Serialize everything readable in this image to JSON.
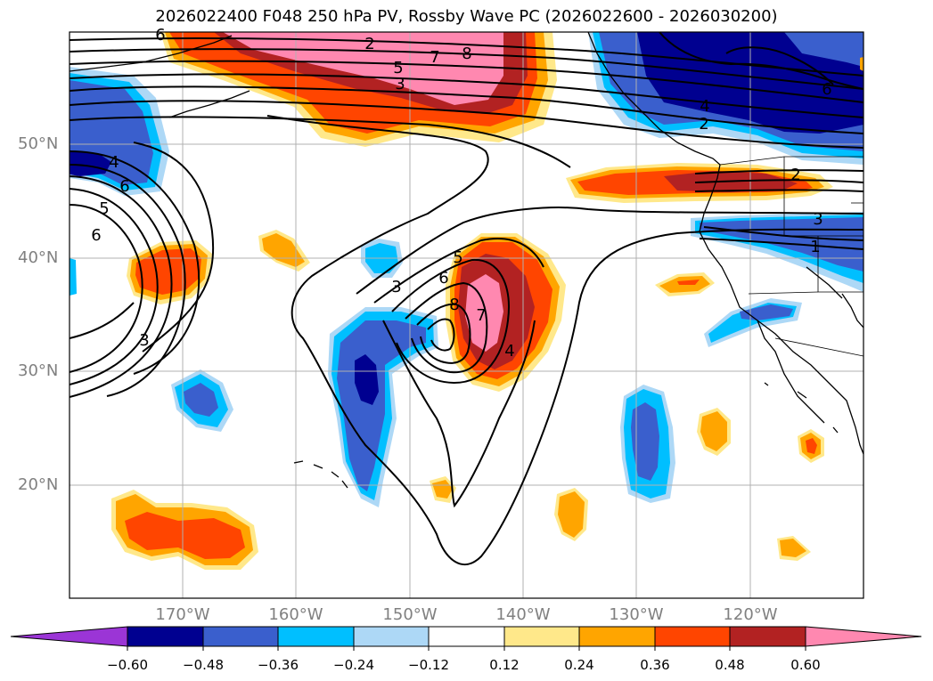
{
  "title": "2026022400 F048 250 hPa PV, Rossby Wave PC (2026022600 - 2026030200)",
  "axes": {
    "lat_labels": [
      "50°N",
      "40°N",
      "30°N",
      "20°N"
    ],
    "lon_labels": [
      "170°W",
      "160°W",
      "150°W",
      "140°W",
      "130°W",
      "120°W"
    ]
  },
  "colorbar": {
    "ticks": [
      "−0.60",
      "−0.48",
      "−0.36",
      "−0.24",
      "−0.12",
      "0.12",
      "0.24",
      "0.36",
      "0.48",
      "0.60"
    ],
    "colors": [
      "#9b35d6",
      "#000090",
      "#3a5fcd",
      "#00bfff",
      "#add8f6",
      "#ffffff",
      "#ffe88a",
      "#ffa500",
      "#ff4500",
      "#b22222",
      "#ff88b0"
    ]
  },
  "contour_labels": [
    "6",
    "7",
    "8",
    "5",
    "3",
    "2",
    "4",
    "5",
    "6",
    "3",
    "6",
    "3",
    "5",
    "6",
    "8",
    "7",
    "4",
    "4",
    "2",
    "2",
    "3",
    "1",
    "6"
  ],
  "colors": {
    "pink": "#ff88b0",
    "darkred": "#b22222",
    "red": "#ff4500",
    "orange": "#ffa500",
    "yellow": "#ffe88a",
    "navy": "#000090",
    "blue": "#3a5fcd",
    "cyan": "#00bfff",
    "lightblue": "#add8f6"
  }
}
